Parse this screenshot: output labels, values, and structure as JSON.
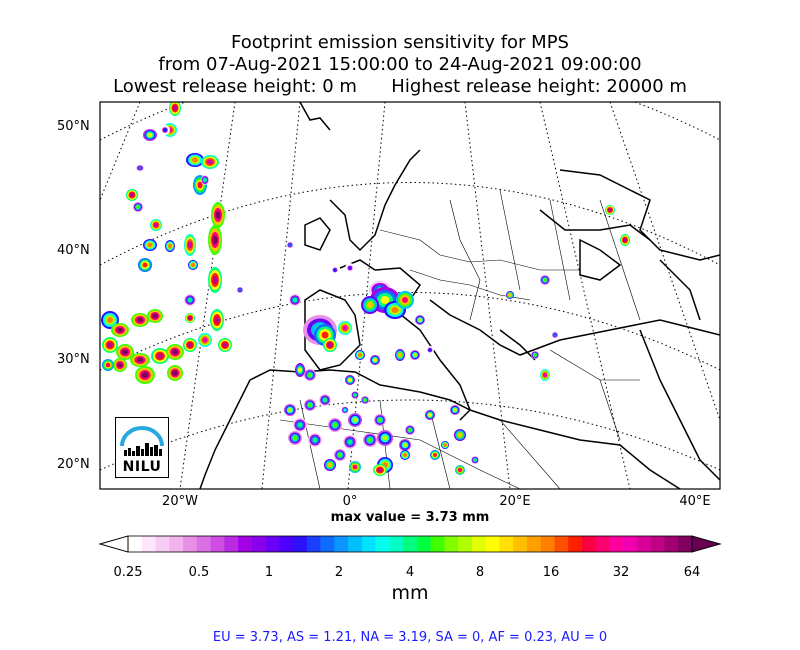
{
  "title": {
    "line1": "Footprint emission sensitivity for MPS",
    "line2": "from 07-Aug-2021 15:00:00 to 24-Aug-2021 09:00:00",
    "line3": "Lowest release height: 0 m      Highest release height: 20000 m"
  },
  "axes": {
    "lat_labels": [
      "50°N",
      "40°N",
      "30°N",
      "20°N"
    ],
    "lon_labels": [
      "20°W",
      "0°",
      "20°E",
      "40°E"
    ]
  },
  "max_value_text": "max value = 3.73 mm",
  "colorbar": {
    "tick_labels": [
      "0.25",
      "0.5",
      "1",
      "2",
      "4",
      "8",
      "16",
      "32",
      "64"
    ],
    "unit": "mm",
    "colors": [
      "#ffffff",
      "#fde6fb",
      "#f9ccf4",
      "#f2b2ee",
      "#e890e8",
      "#db6fe3",
      "#cc4ddf",
      "#b92be0",
      "#a400e6",
      "#8a00ee",
      "#6a00f5",
      "#4a00fb",
      "#2b10ff",
      "#1a40ff",
      "#0f6cff",
      "#0a95ff",
      "#00bfff",
      "#00e0ff",
      "#00ffee",
      "#00ffc0",
      "#00ff80",
      "#00ff40",
      "#40ff00",
      "#80ff00",
      "#b0ff00",
      "#e0ff00",
      "#ffff00",
      "#ffe000",
      "#ffc000",
      "#ffa000",
      "#ff8000",
      "#ff5000",
      "#ff2000",
      "#ff0040",
      "#ff0070",
      "#ff00a0",
      "#f000b0",
      "#d8009a",
      "#c00085",
      "#a00070",
      "#800060"
    ],
    "end_color": "#6a0050"
  },
  "region_summary": "EU = 3.73,  AS = 1.21,  NA = 3.19,  SA = 0,  AF = 0.23,  AU = 0",
  "logo": {
    "text": "NILU",
    "sky_color": "#29a8e0"
  }
}
